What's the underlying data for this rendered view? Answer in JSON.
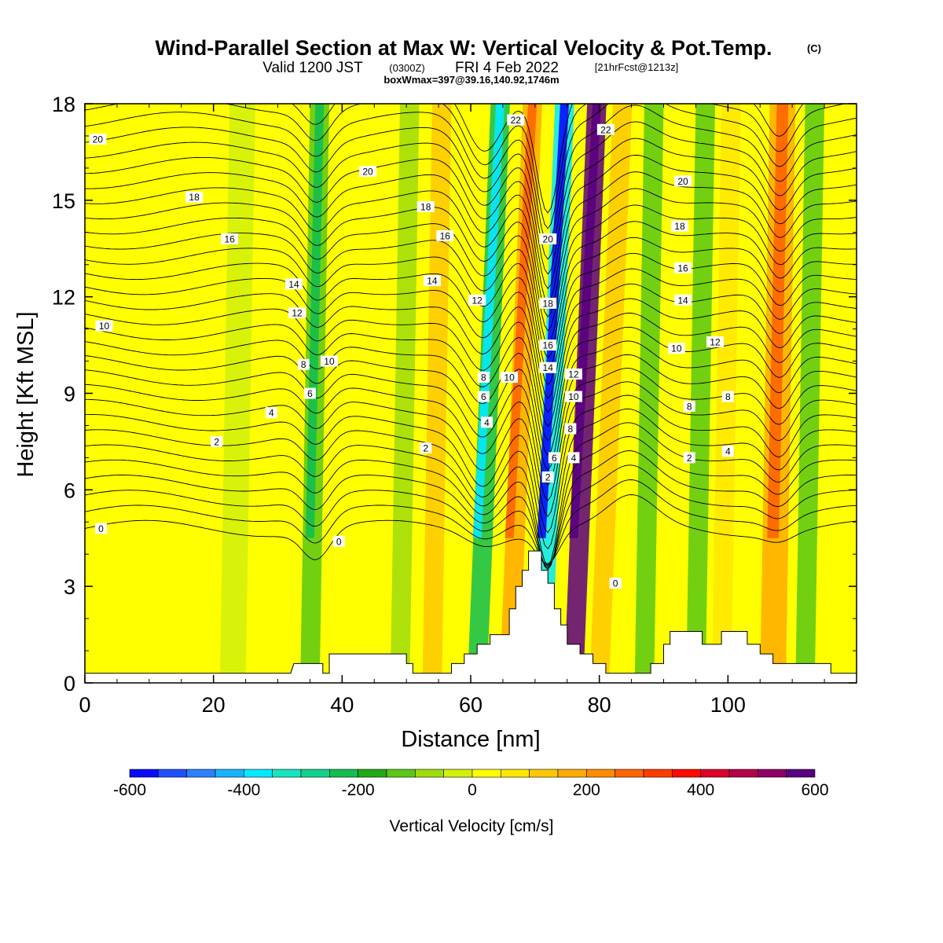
{
  "title": {
    "main": "Wind-Parallel Section at Max W: Vertical Velocity & Pot.Temp.",
    "copyright": "(C)",
    "valid_prefix": "Valid 1200 JST",
    "valid_utc": "(0300Z)",
    "valid_date": "FRI 4 Feb 2022",
    "forecast": "[21hrFcst@1213z]",
    "box_info": "boxWmax=397@39.16,140.92,1746m"
  },
  "chart_data": {
    "type": "heatmap",
    "xlabel": "Distance [nm]",
    "ylabel": "Height [Kft MSL]",
    "xlim": [
      0,
      120
    ],
    "ylim": [
      0,
      18
    ],
    "x_ticks": [
      0,
      20,
      40,
      60,
      80,
      100
    ],
    "x_tick_labels": [
      "0",
      "20",
      "40",
      "60",
      "80",
      "100"
    ],
    "y_ticks": [
      0,
      3,
      6,
      9,
      12,
      15,
      18
    ],
    "y_tick_labels": [
      "0",
      "3",
      "6",
      "9",
      "12",
      "15",
      "18"
    ],
    "colorbar": {
      "label": "Vertical Velocity [cm/s]",
      "min": -600,
      "max": 600,
      "step": 50,
      "tick_values": [
        -600,
        -400,
        -200,
        0,
        200,
        400,
        600
      ],
      "tick_labels": [
        "-600",
        "-400",
        "-200",
        "0",
        "200",
        "400",
        "600"
      ],
      "colors": [
        "#0a0aff",
        "#1e50ff",
        "#2a82ff",
        "#16b4ff",
        "#00eaff",
        "#14e6c0",
        "#10d28c",
        "#12be50",
        "#20aa14",
        "#5ac814",
        "#a0dc0a",
        "#d2f00a",
        "#ffff00",
        "#ffe600",
        "#ffc800",
        "#ffaa00",
        "#ff8c00",
        "#ff6400",
        "#ff3c00",
        "#ff0a00",
        "#dc0028",
        "#b4004b",
        "#8c0064",
        "#5a0082"
      ]
    },
    "terrain_nm_kft": [
      [
        0,
        0.3
      ],
      [
        32,
        0.3
      ],
      [
        32.5,
        0.6
      ],
      [
        37,
        0.6
      ],
      [
        37,
        0.3
      ],
      [
        38,
        0.3
      ],
      [
        38,
        0.9
      ],
      [
        50,
        0.9
      ],
      [
        50,
        0.6
      ],
      [
        51,
        0.6
      ],
      [
        51,
        0.3
      ],
      [
        57,
        0.3
      ],
      [
        57,
        0.6
      ],
      [
        59,
        0.6
      ],
      [
        59,
        0.9
      ],
      [
        61,
        0.9
      ],
      [
        61,
        1.2
      ],
      [
        63,
        1.2
      ],
      [
        63,
        1.5
      ],
      [
        66,
        1.5
      ],
      [
        66,
        2.3
      ],
      [
        67,
        2.3
      ],
      [
        67,
        3.0
      ],
      [
        68,
        3.0
      ],
      [
        68,
        3.5
      ],
      [
        69,
        3.5
      ],
      [
        69,
        4.1
      ],
      [
        71,
        4.1
      ],
      [
        71,
        3.5
      ],
      [
        72,
        3.5
      ],
      [
        72,
        3.1
      ],
      [
        73,
        3.1
      ],
      [
        73,
        2.3
      ],
      [
        74,
        2.3
      ],
      [
        74,
        1.8
      ],
      [
        75,
        1.8
      ],
      [
        75,
        1.2
      ],
      [
        77,
        1.2
      ],
      [
        77,
        0.9
      ],
      [
        79,
        0.9
      ],
      [
        79,
        0.6
      ],
      [
        81,
        0.6
      ],
      [
        81,
        0.3
      ],
      [
        88,
        0.3
      ],
      [
        88,
        0.6
      ],
      [
        90,
        0.6
      ],
      [
        90,
        1.2
      ],
      [
        91,
        1.2
      ],
      [
        91,
        1.6
      ],
      [
        96,
        1.6
      ],
      [
        96,
        1.2
      ],
      [
        99,
        1.2
      ],
      [
        99,
        1.6
      ],
      [
        103,
        1.6
      ],
      [
        103,
        1.2
      ],
      [
        105,
        1.2
      ],
      [
        105,
        0.9
      ],
      [
        107,
        0.9
      ],
      [
        107,
        0.6
      ],
      [
        116,
        0.6
      ],
      [
        116,
        0.3
      ],
      [
        120,
        0.3
      ],
      [
        120,
        0
      ]
    ],
    "velocity_bands": [
      {
        "x": 14,
        "w": 6,
        "w_cms": 15
      },
      {
        "x": 23,
        "w": 4,
        "w_cms": -30
      },
      {
        "x": 35,
        "w": 3,
        "w_cms": -150
      },
      {
        "x": 43,
        "w": 4,
        "w_cms": 40
      },
      {
        "x": 49,
        "w": 3,
        "w_cms": -90
      },
      {
        "x": 54,
        "w": 3,
        "w_cms": 120
      },
      {
        "x": 61,
        "w": 3,
        "w_cms": -250
      },
      {
        "x": 66,
        "w": 3,
        "w_cms": 180
      },
      {
        "x": 71,
        "w": 3,
        "w_cms": -380
      },
      {
        "x": 76,
        "w": 3,
        "w_cms": 550
      },
      {
        "x": 80,
        "w": 3,
        "w_cms": 120
      },
      {
        "x": 87,
        "w": 3,
        "w_cms": -120
      },
      {
        "x": 95,
        "w": 3,
        "w_cms": -140
      },
      {
        "x": 99,
        "w": 3,
        "w_cms": 60
      },
      {
        "x": 107,
        "w": 4,
        "w_cms": 180
      },
      {
        "x": 112,
        "w": 3,
        "w_cms": -130
      }
    ],
    "theta_contours": [
      {
        "value": "0",
        "base": 4.8
      },
      {
        "value": "2",
        "base": 7.3
      },
      {
        "value": "4",
        "base": 8.3
      },
      {
        "value": "6",
        "base": 9.0
      },
      {
        "value": "8",
        "base": 9.7
      },
      {
        "value": "10",
        "base": 11.2
      },
      {
        "value": "12",
        "base": 12.0
      },
      {
        "value": "14",
        "base": 12.6
      },
      {
        "value": "16",
        "base": 13.8
      },
      {
        "value": "18",
        "base": 15.0
      },
      {
        "value": "20",
        "base": 17.0
      },
      {
        "value": "22",
        "base": 18.5
      }
    ],
    "contour_labels": [
      {
        "text": "20",
        "x": 2,
        "y": 16.9
      },
      {
        "text": "18",
        "x": 17,
        "y": 15.1
      },
      {
        "text": "16",
        "x": 22.5,
        "y": 13.8
      },
      {
        "text": "14",
        "x": 32.5,
        "y": 12.4
      },
      {
        "text": "12",
        "x": 33,
        "y": 11.5
      },
      {
        "text": "10",
        "x": 3,
        "y": 11.1
      },
      {
        "text": "10",
        "x": 38,
        "y": 10.0
      },
      {
        "text": "8",
        "x": 34,
        "y": 9.9
      },
      {
        "text": "6",
        "x": 35,
        "y": 9.0
      },
      {
        "text": "4",
        "x": 29,
        "y": 8.4
      },
      {
        "text": "2",
        "x": 20.5,
        "y": 7.5
      },
      {
        "text": "0",
        "x": 2.5,
        "y": 4.8
      },
      {
        "text": "0",
        "x": 39.5,
        "y": 4.4
      },
      {
        "text": "20",
        "x": 44,
        "y": 15.9
      },
      {
        "text": "18",
        "x": 53,
        "y": 14.8
      },
      {
        "text": "16",
        "x": 56,
        "y": 13.9
      },
      {
        "text": "14",
        "x": 54,
        "y": 12.5
      },
      {
        "text": "12",
        "x": 61,
        "y": 11.9
      },
      {
        "text": "10",
        "x": 66,
        "y": 9.5
      },
      {
        "text": "8",
        "x": 62,
        "y": 9.5
      },
      {
        "text": "6",
        "x": 62,
        "y": 8.9
      },
      {
        "text": "4",
        "x": 62.5,
        "y": 8.1
      },
      {
        "text": "2",
        "x": 53,
        "y": 7.3
      },
      {
        "text": "22",
        "x": 67,
        "y": 17.5
      },
      {
        "text": "20",
        "x": 72,
        "y": 13.8
      },
      {
        "text": "18",
        "x": 72,
        "y": 11.8
      },
      {
        "text": "16",
        "x": 72,
        "y": 10.5
      },
      {
        "text": "14",
        "x": 72,
        "y": 9.8
      },
      {
        "text": "12",
        "x": 76,
        "y": 9.6
      },
      {
        "text": "10",
        "x": 76,
        "y": 8.9
      },
      {
        "text": "8",
        "x": 75.5,
        "y": 7.9
      },
      {
        "text": "6",
        "x": 73,
        "y": 7.0
      },
      {
        "text": "4",
        "x": 76,
        "y": 7.0
      },
      {
        "text": "2",
        "x": 72,
        "y": 6.4
      },
      {
        "text": "22",
        "x": 81,
        "y": 17.2
      },
      {
        "text": "20",
        "x": 93,
        "y": 15.6
      },
      {
        "text": "18",
        "x": 92.5,
        "y": 14.2
      },
      {
        "text": "16",
        "x": 93,
        "y": 12.9
      },
      {
        "text": "14",
        "x": 93,
        "y": 11.9
      },
      {
        "text": "12",
        "x": 98,
        "y": 10.6
      },
      {
        "text": "10",
        "x": 92,
        "y": 10.4
      },
      {
        "text": "8",
        "x": 100,
        "y": 8.9
      },
      {
        "text": "8",
        "x": 94,
        "y": 8.6
      },
      {
        "text": "4",
        "x": 100,
        "y": 7.2
      },
      {
        "text": "2",
        "x": 94,
        "y": 7.0
      },
      {
        "text": "0",
        "x": 82.5,
        "y": 3.1
      }
    ]
  }
}
